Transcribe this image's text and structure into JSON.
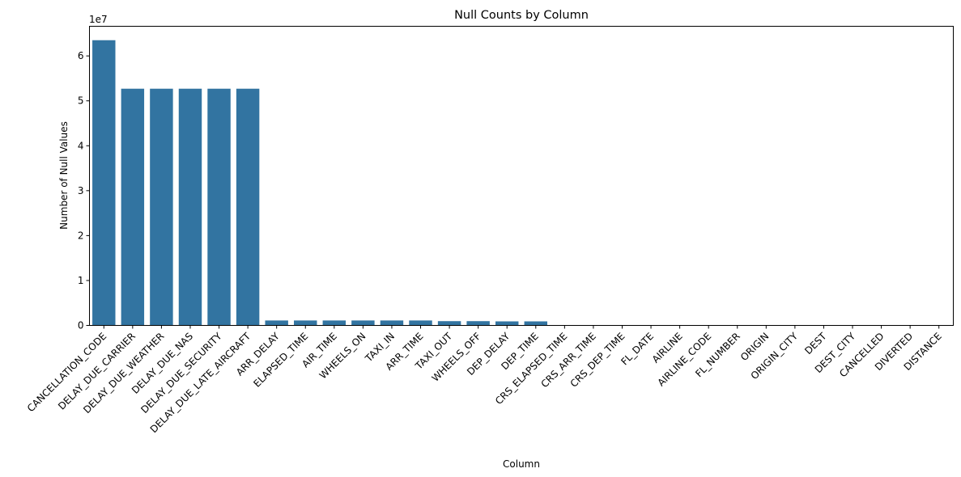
{
  "chart_data": {
    "type": "bar",
    "title": "Null Counts by Column",
    "xlabel": "Column",
    "ylabel": "Number of Null Values",
    "y_offset_label": "1e7",
    "y_scale": 10000000,
    "ylim": [
      0,
      66600000
    ],
    "yticks": [
      0,
      1,
      2,
      3,
      4,
      5,
      6
    ],
    "grid": false,
    "bar_color": "#3274a1",
    "categories": [
      "CANCELLATION_CODE",
      "DELAY_DUE_CARRIER",
      "DELAY_DUE_WEATHER",
      "DELAY_DUE_NAS",
      "DELAY_DUE_SECURITY",
      "DELAY_DUE_LATE_AIRCRAFT",
      "ARR_DELAY",
      "ELAPSED_TIME",
      "AIR_TIME",
      "WHEELS_ON",
      "TAXI_IN",
      "ARR_TIME",
      "TAXI_OUT",
      "WHEELS_OFF",
      "DEP_DELAY",
      "DEP_TIME",
      "CRS_ELAPSED_TIME",
      "CRS_ARR_TIME",
      "CRS_DEP_TIME",
      "FL_DATE",
      "AIRLINE",
      "AIRLINE_CODE",
      "FL_NUMBER",
      "ORIGIN",
      "ORIGIN_CITY",
      "DEST",
      "DEST_CITY",
      "CANCELLED",
      "DIVERTED",
      "DISTANCE"
    ],
    "values": [
      63500000,
      52700000,
      52700000,
      52700000,
      52700000,
      52700000,
      1100000,
      1100000,
      1100000,
      1100000,
      1100000,
      1100000,
      950000,
      950000,
      900000,
      900000,
      0,
      0,
      0,
      0,
      0,
      0,
      0,
      0,
      0,
      0,
      0,
      0,
      0,
      0
    ]
  }
}
